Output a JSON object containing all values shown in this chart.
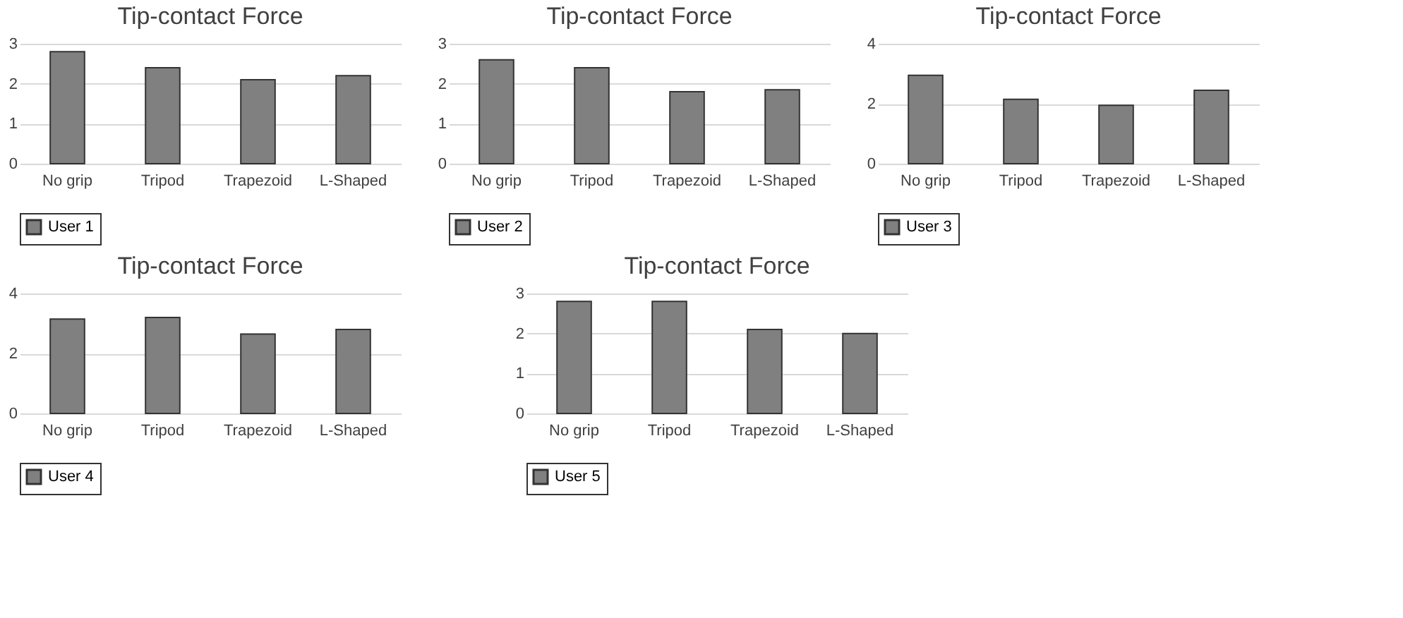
{
  "chart_data": [
    {
      "type": "bar",
      "title": "Tip-contact Force",
      "categories": [
        "No grip",
        "Tripod",
        "Trapezoid",
        "L-Shaped"
      ],
      "series": [
        {
          "name": "User 1",
          "color": "#808080",
          "values": [
            2.8,
            2.4,
            2.1,
            2.2
          ]
        }
      ],
      "ylim": [
        0,
        3
      ],
      "yticks": [
        0,
        1,
        2,
        3
      ],
      "grid": "y",
      "legend": "bottom"
    },
    {
      "type": "bar",
      "title": "Tip-contact Force",
      "categories": [
        "No grip",
        "Tripod",
        "Trapezoid",
        "L-Shaped"
      ],
      "series": [
        {
          "name": "User 2",
          "color": "#808080",
          "values": [
            2.6,
            2.4,
            1.8,
            1.85
          ]
        }
      ],
      "ylim": [
        0,
        3
      ],
      "yticks": [
        0,
        1,
        2,
        3
      ],
      "grid": "y",
      "legend": "bottom"
    },
    {
      "type": "bar",
      "title": "Tip-contact Force",
      "categories": [
        "No grip",
        "Tripod",
        "Trapezoid",
        "L-Shaped"
      ],
      "series": [
        {
          "name": "User 3",
          "color": "#808080",
          "values": [
            2.95,
            2.15,
            1.95,
            2.45
          ]
        }
      ],
      "ylim": [
        0,
        4
      ],
      "yticks": [
        0,
        2,
        4
      ],
      "grid": "y",
      "legend": "bottom"
    },
    {
      "type": "bar",
      "title": "Tip-contact Force",
      "categories": [
        "No grip",
        "Tripod",
        "Trapezoid",
        "L-Shaped"
      ],
      "series": [
        {
          "name": "User 4",
          "color": "#808080",
          "values": [
            3.15,
            3.2,
            2.65,
            2.8
          ]
        }
      ],
      "ylim": [
        0,
        4
      ],
      "yticks": [
        0,
        2,
        4
      ],
      "grid": "y",
      "legend": "bottom"
    },
    {
      "type": "bar",
      "title": "Tip-contact Force",
      "categories": [
        "No grip",
        "Tripod",
        "Trapezoid",
        "L-Shaped"
      ],
      "series": [
        {
          "name": "User 5",
          "color": "#808080",
          "values": [
            2.8,
            2.8,
            2.1,
            2.0
          ]
        }
      ],
      "ylim": [
        0,
        3
      ],
      "yticks": [
        0,
        1,
        2,
        3
      ],
      "grid": "y",
      "legend": "bottom"
    }
  ]
}
